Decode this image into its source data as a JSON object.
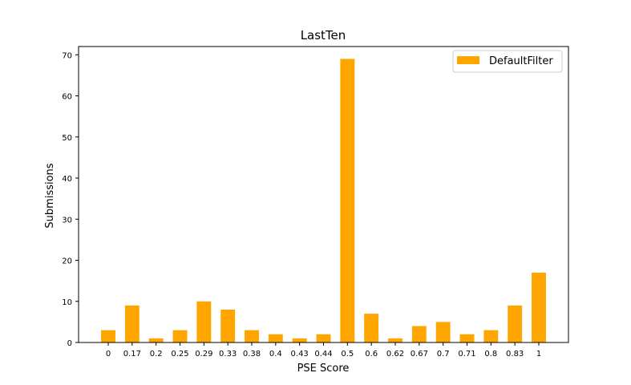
{
  "chart_data": {
    "type": "bar",
    "title": "LastTen",
    "xlabel": "PSE Score",
    "ylabel": "Submissions",
    "categories": [
      "0",
      "0.17",
      "0.2",
      "0.25",
      "0.29",
      "0.33",
      "0.38",
      "0.4",
      "0.43",
      "0.44",
      "0.5",
      "0.6",
      "0.62",
      "0.67",
      "0.7",
      "0.71",
      "0.8",
      "0.83",
      "1"
    ],
    "series": [
      {
        "name": "DefaultFilter",
        "color": "#ffa500",
        "values": [
          3,
          9,
          1,
          3,
          10,
          8,
          3,
          2,
          1,
          2,
          69,
          7,
          1,
          4,
          5,
          2,
          3,
          9,
          17
        ]
      }
    ],
    "ylim": [
      0,
      72
    ],
    "yticks": [
      0,
      10,
      20,
      30,
      40,
      50,
      60,
      70
    ],
    "grid": false,
    "legend_position": "top-right"
  }
}
